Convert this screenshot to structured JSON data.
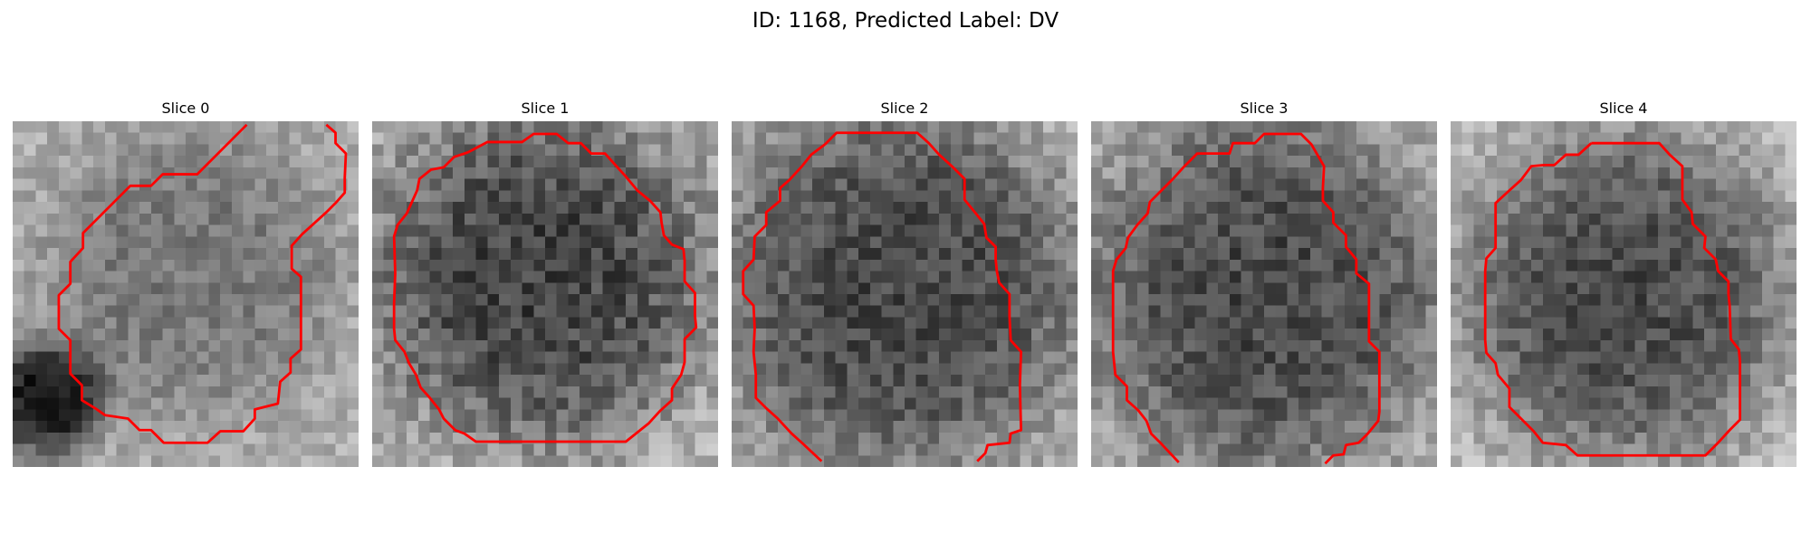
{
  "figure": {
    "title": "ID: 1168, Predicted Label: DV"
  },
  "colors": {
    "contour": "#ff0000",
    "background": "#ffffff"
  },
  "panels": [
    {
      "title": "Slice 0",
      "image": {
        "grid": 30,
        "base_gray": 175,
        "blob": {
          "cx": 15.5,
          "cy": 13,
          "r": 12,
          "gray": 120,
          "falloff": 0.9
        },
        "dark_spot": {
          "cx": 3,
          "cy": 24,
          "r": 4.5,
          "gray": 20
        },
        "noise": 26,
        "seed": 11
      },
      "contour": [
        [
          20.3,
          0.3
        ],
        [
          16,
          4.6
        ],
        [
          13,
          4.6
        ],
        [
          12,
          5.6
        ],
        [
          10.2,
          5.6
        ],
        [
          6.1,
          9.7
        ],
        [
          6.1,
          11
        ],
        [
          5,
          12.2
        ],
        [
          5,
          14.1
        ],
        [
          4,
          15.1
        ],
        [
          4,
          18
        ],
        [
          5,
          19
        ],
        [
          5,
          21.9
        ],
        [
          6,
          22.9
        ],
        [
          6,
          24.2
        ],
        [
          7.3,
          25
        ],
        [
          8,
          25.5
        ],
        [
          10,
          25.8
        ],
        [
          11,
          26.8
        ],
        [
          12,
          26.8
        ],
        [
          13.1,
          27.9
        ],
        [
          16.9,
          27.9
        ],
        [
          18,
          26.9
        ],
        [
          20,
          26.9
        ],
        [
          21,
          25.8
        ],
        [
          21,
          25
        ],
        [
          23,
          24.5
        ],
        [
          23.2,
          22.6
        ],
        [
          24.1,
          21.8
        ],
        [
          24.1,
          20.6
        ],
        [
          25,
          19.8
        ],
        [
          25,
          13.5
        ],
        [
          24.2,
          12.8
        ],
        [
          24.2,
          10.8
        ],
        [
          25.1,
          9.8
        ],
        [
          26.1,
          8.9
        ],
        [
          27.2,
          7.9
        ],
        [
          28,
          7.1
        ],
        [
          28.8,
          6.2
        ],
        [
          28.8,
          4.9
        ],
        [
          28.9,
          2.8
        ],
        [
          28,
          1.9
        ],
        [
          28,
          1
        ],
        [
          27.2,
          0.3
        ]
      ]
    },
    {
      "title": "Slice 1",
      "image": {
        "grid": 30,
        "base_gray": 190,
        "blob": {
          "cx": 14.5,
          "cy": 13.5,
          "r": 14,
          "gray": 65,
          "falloff": 1.2
        },
        "dark_spot": null,
        "noise": 36,
        "seed": 23
      },
      "contour": [
        [
          8.3,
          2.7
        ],
        [
          10,
          1.8
        ],
        [
          13,
          1.8
        ],
        [
          14,
          1.1
        ],
        [
          16,
          1.1
        ],
        [
          17,
          1.9
        ],
        [
          18.1,
          1.9
        ],
        [
          19,
          2.8
        ],
        [
          20.2,
          2.8
        ],
        [
          21.1,
          3.8
        ],
        [
          22,
          4.8
        ],
        [
          23,
          6
        ],
        [
          24.1,
          6.9
        ],
        [
          25,
          7.9
        ],
        [
          25.1,
          8.8
        ],
        [
          25.3,
          9.9
        ],
        [
          26,
          10.7
        ],
        [
          27,
          11.1
        ],
        [
          27.1,
          12.1
        ],
        [
          27.1,
          13.9
        ],
        [
          28,
          14.9
        ],
        [
          28,
          16.9
        ],
        [
          28.1,
          17.9
        ],
        [
          27.1,
          18.9
        ],
        [
          27.1,
          20.9
        ],
        [
          26.8,
          22
        ],
        [
          26,
          23.2
        ],
        [
          26,
          24.2
        ],
        [
          25,
          25.1
        ],
        [
          24,
          26.2
        ],
        [
          22,
          27.8
        ],
        [
          9,
          27.8
        ],
        [
          8,
          27.1
        ],
        [
          7.2,
          26.8
        ],
        [
          6.2,
          25.8
        ],
        [
          5.8,
          25
        ],
        [
          5,
          24
        ],
        [
          4.2,
          23.1
        ],
        [
          3.8,
          22
        ],
        [
          3.2,
          21
        ],
        [
          2.8,
          20
        ],
        [
          2,
          19
        ],
        [
          1.9,
          18
        ],
        [
          1.9,
          15.8
        ],
        [
          2,
          13.2
        ],
        [
          1.9,
          10
        ],
        [
          2.2,
          9
        ],
        [
          3,
          8
        ],
        [
          3.9,
          6
        ],
        [
          4.1,
          5
        ],
        [
          5.1,
          4.2
        ],
        [
          6.2,
          4
        ],
        [
          7.1,
          3.1
        ],
        [
          8.3,
          2.7
        ]
      ]
    },
    {
      "title": "Slice 2",
      "image": {
        "grid": 30,
        "base_gray": 185,
        "blob": {
          "cx": 14.5,
          "cy": 14.5,
          "r": 15,
          "gray": 70,
          "falloff": 1.1
        },
        "dark_spot": null,
        "noise": 32,
        "seed": 37
      },
      "contour": [
        [
          8.1,
          2
        ],
        [
          9.1,
          1
        ],
        [
          16.1,
          1
        ],
        [
          17.1,
          1.9
        ],
        [
          18,
          2.9
        ],
        [
          19.1,
          3.9
        ],
        [
          20.2,
          5
        ],
        [
          20.2,
          6.8
        ],
        [
          21.1,
          7.9
        ],
        [
          21.9,
          8.9
        ],
        [
          22.1,
          10.1
        ],
        [
          22.9,
          10.9
        ],
        [
          22.9,
          12
        ],
        [
          23,
          13
        ],
        [
          23.2,
          14
        ],
        [
          24.1,
          15
        ],
        [
          24.1,
          16.9
        ],
        [
          24.2,
          19
        ],
        [
          25.1,
          20
        ],
        [
          25,
          22.9
        ],
        [
          25.1,
          26.8
        ],
        [
          24.2,
          27.1
        ],
        [
          24.1,
          27.9
        ],
        [
          22.2,
          28.1
        ],
        [
          22,
          28.8
        ],
        [
          21.3,
          29.5
        ]
      ],
      "contour2": [
        [
          7.8,
          29.5
        ],
        [
          6.2,
          28
        ],
        [
          5.2,
          27.1
        ],
        [
          4,
          25.8
        ],
        [
          3,
          24.9
        ],
        [
          2.1,
          24
        ],
        [
          2.1,
          22
        ],
        [
          1.9,
          20
        ],
        [
          2,
          18
        ],
        [
          1.9,
          16
        ],
        [
          1,
          15
        ],
        [
          1,
          13
        ],
        [
          1.9,
          12
        ],
        [
          2,
          10
        ],
        [
          3,
          9
        ],
        [
          3,
          7.9
        ],
        [
          4.2,
          6.9
        ],
        [
          4.2,
          5.8
        ],
        [
          5,
          5.1
        ],
        [
          6.1,
          3.9
        ],
        [
          6.9,
          2.9
        ],
        [
          8.1,
          2
        ]
      ]
    },
    {
      "title": "Slice 3",
      "image": {
        "grid": 30,
        "base_gray": 190,
        "blob": {
          "cx": 15,
          "cy": 15,
          "r": 15,
          "gray": 70,
          "falloff": 1.2
        },
        "dark_spot": null,
        "noise": 32,
        "seed": 49
      },
      "contour": [
        [
          10,
          2.8
        ],
        [
          12,
          2.8
        ],
        [
          12.3,
          1.9
        ],
        [
          14.2,
          1.9
        ],
        [
          15,
          1.1
        ],
        [
          17,
          1.1
        ],
        [
          18.2,
          1.1
        ],
        [
          19.1,
          2
        ],
        [
          20.2,
          3.9
        ],
        [
          20.1,
          5.8
        ],
        [
          20.1,
          6.9
        ],
        [
          21,
          7.9
        ],
        [
          21,
          8.8
        ],
        [
          22.1,
          9.9
        ],
        [
          22.1,
          10.9
        ],
        [
          23,
          12
        ],
        [
          23,
          13.2
        ],
        [
          24.1,
          14.1
        ],
        [
          24.1,
          17.9
        ],
        [
          24.1,
          19.1
        ],
        [
          25,
          20
        ],
        [
          25,
          25.2
        ],
        [
          24.9,
          26
        ],
        [
          24,
          27.1
        ],
        [
          23.2,
          27.9
        ],
        [
          22.1,
          28.1
        ],
        [
          21.9,
          28.9
        ],
        [
          21,
          29
        ],
        [
          20.3,
          29.7
        ]
      ],
      "contour2": [
        [
          7.6,
          29.6
        ],
        [
          6.1,
          28
        ],
        [
          5.2,
          27.1
        ],
        [
          4.8,
          26
        ],
        [
          4.1,
          25.1
        ],
        [
          3.1,
          24.2
        ],
        [
          3.1,
          23
        ],
        [
          2.1,
          22
        ],
        [
          1.9,
          20
        ],
        [
          1.9,
          18
        ],
        [
          1.9,
          15
        ],
        [
          1.9,
          13
        ],
        [
          2.2,
          12
        ],
        [
          3,
          11
        ],
        [
          3.2,
          10.1
        ],
        [
          4,
          9
        ],
        [
          4.9,
          8
        ],
        [
          5.1,
          7
        ],
        [
          6.1,
          6
        ],
        [
          7.1,
          5
        ],
        [
          8,
          4
        ],
        [
          9.2,
          2.8
        ],
        [
          10,
          2.8
        ]
      ]
    },
    {
      "title": "Slice 4",
      "image": {
        "grid": 30,
        "base_gray": 195,
        "blob": {
          "cx": 15,
          "cy": 15,
          "r": 13.5,
          "gray": 72,
          "falloff": 1.2
        },
        "dark_spot": null,
        "noise": 30,
        "seed": 61
      },
      "contour": [
        [
          12.2,
          1.9
        ],
        [
          18.1,
          1.9
        ],
        [
          19,
          2.9
        ],
        [
          20.1,
          3.9
        ],
        [
          20.1,
          6.8
        ],
        [
          20.9,
          7.9
        ],
        [
          21,
          8.9
        ],
        [
          22.1,
          10
        ],
        [
          22,
          11
        ],
        [
          23,
          12
        ],
        [
          23.2,
          13
        ],
        [
          24.1,
          13.9
        ],
        [
          24.1,
          15
        ],
        [
          24.2,
          16
        ],
        [
          24.3,
          18.9
        ],
        [
          25,
          19.8
        ],
        [
          25.1,
          20.9
        ],
        [
          25.1,
          25.9
        ],
        [
          24.2,
          26.8
        ],
        [
          23.1,
          28
        ],
        [
          22.1,
          29
        ],
        [
          11,
          29
        ],
        [
          10,
          28.1
        ],
        [
          8,
          27.9
        ],
        [
          7.2,
          26.9
        ],
        [
          6.2,
          25.9
        ],
        [
          5.1,
          24.8
        ],
        [
          5.1,
          23.2
        ],
        [
          4.1,
          22
        ],
        [
          3.9,
          21
        ],
        [
          3.1,
          20.1
        ],
        [
          3,
          19
        ],
        [
          3,
          13
        ],
        [
          3.1,
          11.9
        ],
        [
          3.9,
          11
        ],
        [
          3.9,
          9.1
        ],
        [
          3.9,
          7.1
        ],
        [
          5.1,
          6
        ],
        [
          6.1,
          5.1
        ],
        [
          7,
          3.9
        ],
        [
          8.1,
          3.8
        ],
        [
          9,
          3.8
        ],
        [
          10,
          2.9
        ],
        [
          11.1,
          2.9
        ],
        [
          12.2,
          1.9
        ]
      ]
    }
  ]
}
